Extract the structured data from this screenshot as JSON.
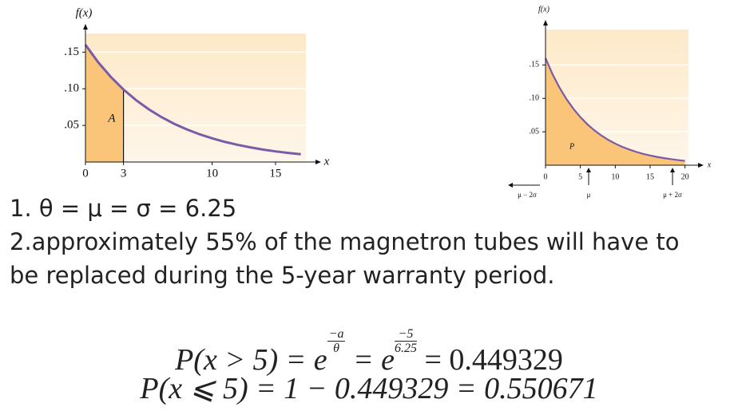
{
  "charts": [
    {
      "type": "line",
      "ylabel": "f(x)",
      "xlabel": "x",
      "region_label": "A",
      "x": [
        0,
        1,
        2,
        3,
        4,
        5,
        6,
        7,
        8,
        9,
        10,
        11,
        12,
        13,
        14,
        15,
        16,
        17
      ],
      "values": [
        0.16,
        0.1363,
        0.1162,
        0.099,
        0.0844,
        0.0719,
        0.0613,
        0.0522,
        0.0445,
        0.0379,
        0.0323,
        0.0275,
        0.0235,
        0.02,
        0.017,
        0.0145,
        0.0124,
        0.0106
      ],
      "xlim": [
        0,
        17.4
      ],
      "ylim": [
        0,
        0.17
      ],
      "xticks": [
        0,
        3,
        10,
        15
      ],
      "yticks": [
        {
          "value": 0.15,
          "label": ".15"
        },
        {
          "value": 0.1,
          "label": ".10"
        },
        {
          "value": 0.05,
          "label": ".05"
        }
      ]
    },
    {
      "type": "line",
      "ylabel": "f(x)",
      "xlabel": "x",
      "region_label": "P",
      "x": [
        0,
        1,
        2,
        3,
        4,
        5,
        6,
        7,
        8,
        9,
        10,
        11,
        12,
        13,
        14,
        15,
        16,
        17,
        18,
        19,
        20
      ],
      "values": [
        0.16,
        0.1363,
        0.1162,
        0.099,
        0.0844,
        0.0719,
        0.0613,
        0.0522,
        0.0445,
        0.0379,
        0.0323,
        0.0275,
        0.0235,
        0.02,
        0.017,
        0.0145,
        0.0124,
        0.0106,
        0.009,
        0.0077,
        0.0065
      ],
      "xlim": [
        0,
        20.5
      ],
      "ylim": [
        0,
        0.197
      ],
      "xticks": [
        0,
        5,
        10,
        15,
        20
      ],
      "yticks": [
        {
          "value": 0.15,
          "label": ".15"
        },
        {
          "value": 0.1,
          "label": ".10"
        },
        {
          "value": 0.05,
          "label": ".05"
        }
      ],
      "markers": [
        "μ − 2σ",
        "μ",
        "μ + 2σ"
      ]
    }
  ],
  "text": {
    "line1": "1. θ =  μ = σ = 6.25",
    "line2": "2.approximately 55% of the magnetron tubes will have to",
    "line3": "be replaced during the 5-year warranty period."
  },
  "equations": {
    "eq1": {
      "lhs": "P(x > 5) = e",
      "exp1_num": "−a",
      "exp1_den": "θ",
      "mid": "= e",
      "exp2_num": "−5",
      "exp2_den": "6.25",
      "rhs": "= 0.449329"
    },
    "eq2": "P(x ⩽ 5) = 1 − 0.449329 = 0.550671"
  }
}
